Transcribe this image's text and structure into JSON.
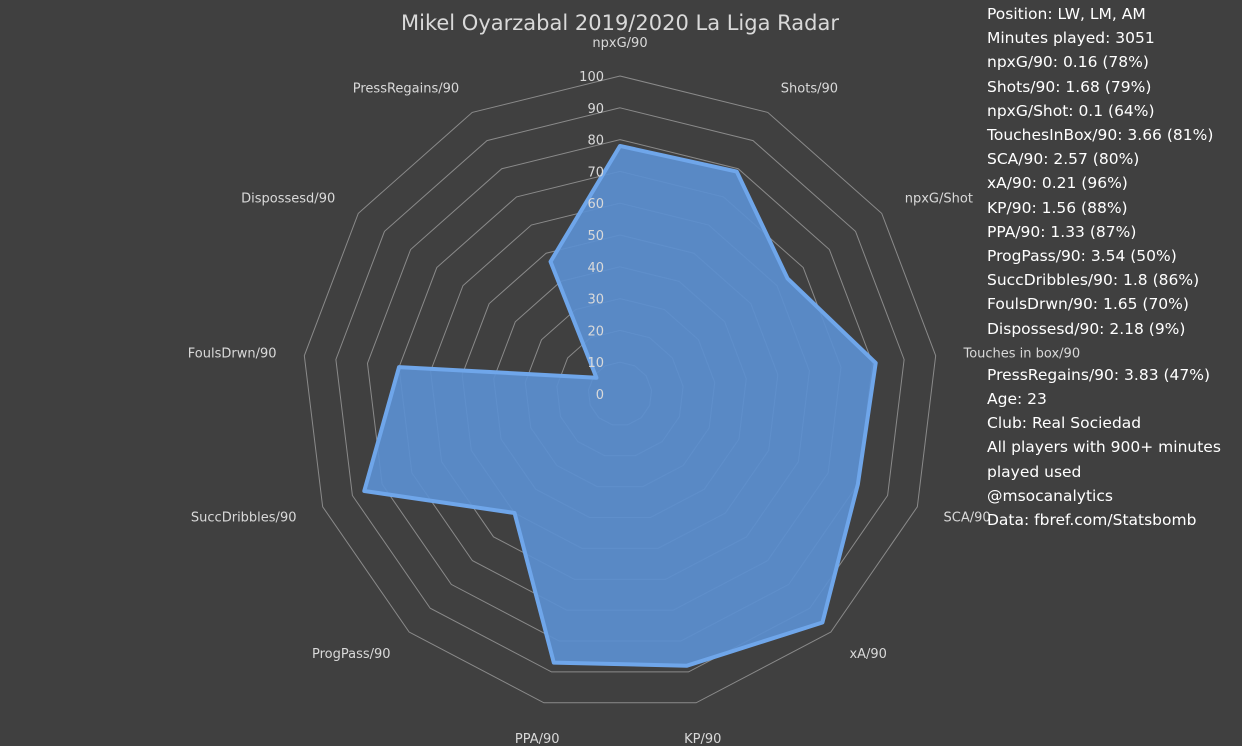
{
  "chart_data": {
    "type": "radar",
    "title": "Mikel Oyarzabal 2019/2020 La Liga Radar",
    "axes": [
      "npxG/90",
      "Shots/90",
      "npxG/Shot",
      "Touches in box/90",
      "SCA/90",
      "xA/90",
      "KP/90",
      "PPA/90",
      "ProgPass/90",
      "SuccDribbles/90",
      "FoulsDrwn/90",
      "Dispossesd/90",
      "PressRegains/90"
    ],
    "values": [
      78,
      79,
      64,
      81,
      80,
      96,
      88,
      87,
      50,
      86,
      70,
      9,
      47
    ],
    "rlim": [
      0,
      100
    ],
    "r_ticks": [
      0,
      10,
      20,
      30,
      40,
      50,
      60,
      70,
      80,
      90,
      100
    ],
    "series_color": "#5b8fd0",
    "outline_color": "#6fa6ea",
    "grid_color": "#8a8a8a",
    "grid_shape": "polygon"
  },
  "info": {
    "lines_top": [
      "Position: LW, LM, AM",
      "Minutes played: 3051",
      "npxG/90: 0.16 (78%)",
      "Shots/90: 1.68 (79%)",
      "npxG/Shot: 0.1 (64%)",
      "TouchesInBox/90: 3.66 (81%)",
      "SCA/90: 2.57 (80%)",
      "xA/90: 0.21 (96%)",
      "KP/90: 1.56 (88%)",
      "PPA/90: 1.33 (87%)",
      "ProgPass/90: 3.54 (50%)",
      "SuccDribbles/90: 1.8 (86%)",
      "FoulsDrwn/90: 1.65 (70%)",
      "Dispossesd/90: 2.18 (9%)"
    ],
    "lines_bottom": [
      "PressRegains/90: 3.83 (47%)",
      "Age: 23",
      "Club: Real Sociedad",
      "All players with 900+ minutes played used",
      "@msocanalytics",
      "Data: fbref.com/Statsbomb"
    ]
  }
}
